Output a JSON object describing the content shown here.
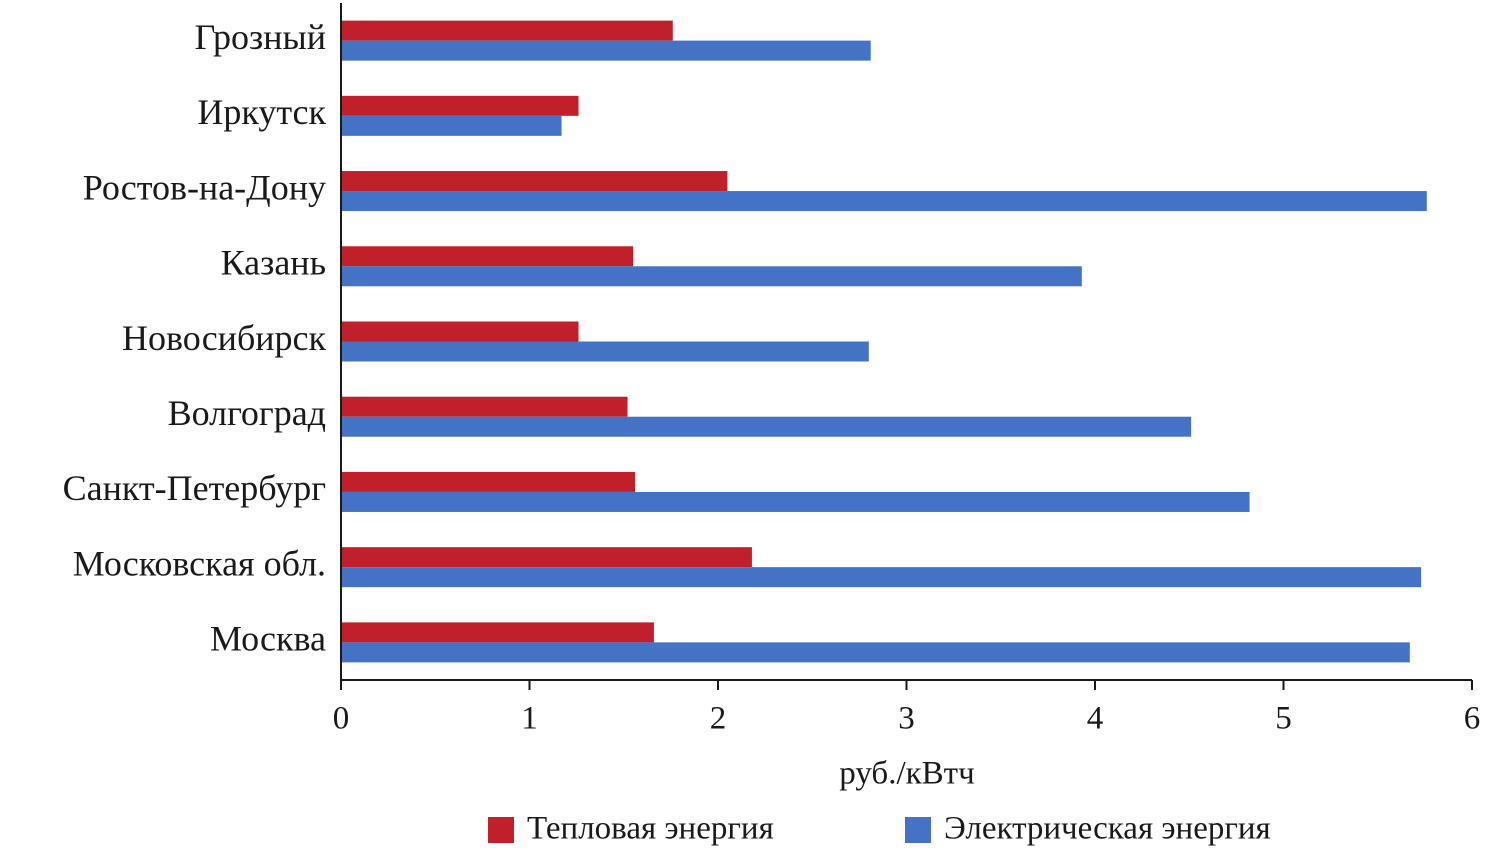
{
  "chart_data": {
    "type": "hbar",
    "categories": [
      "Грозный",
      "Иркутск",
      "Ростов-на-Дону",
      "Казань",
      "Новосибирск",
      "Волгоград",
      "Санкт-Петербург",
      "Московская обл.",
      "Москва"
    ],
    "series": [
      {
        "name": "Тепловая энергия",
        "color": "#c0202a",
        "values": [
          1.76,
          1.26,
          2.05,
          1.55,
          1.26,
          1.52,
          1.56,
          2.18,
          1.66
        ]
      },
      {
        "name": "Электрическая энергия",
        "color": "#4472c4",
        "values": [
          2.81,
          1.17,
          5.76,
          3.93,
          2.8,
          4.51,
          4.82,
          5.73,
          5.67
        ]
      }
    ],
    "x_label": "руб./кВтч",
    "xlim": [
      0,
      6
    ],
    "xticks": [
      0,
      1,
      2,
      3,
      4,
      5,
      6
    ],
    "grid": false,
    "legend": "bottom"
  }
}
